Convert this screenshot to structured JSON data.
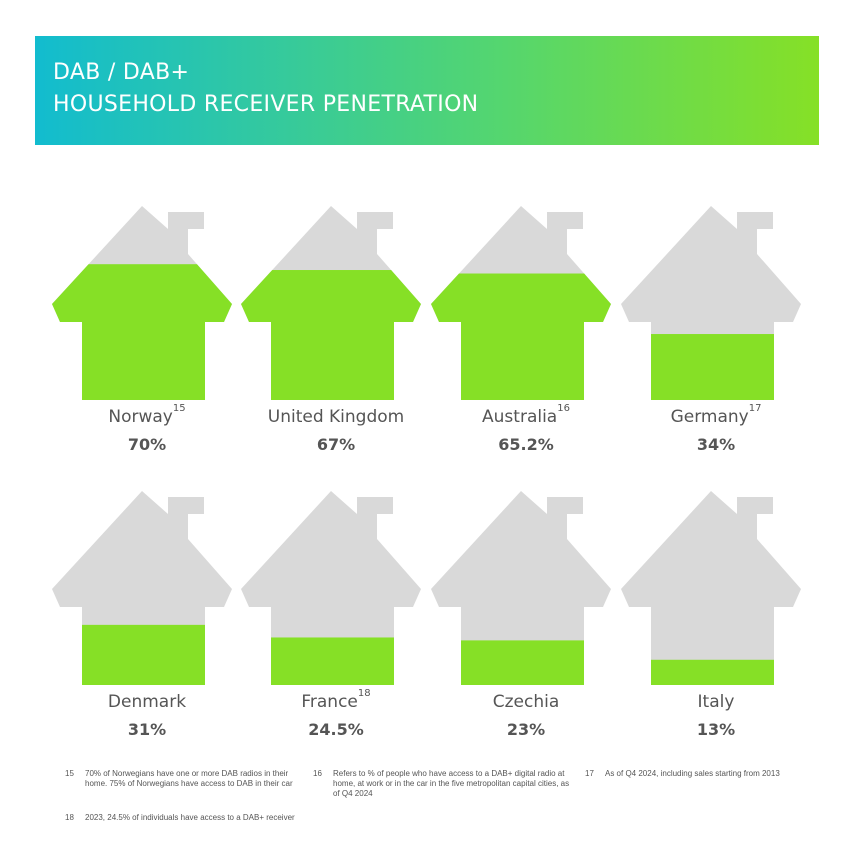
{
  "header": {
    "line1": "DAB /  DAB+",
    "line2": "HOUSEHOLD RECEIVER PENETRATION"
  },
  "colors": {
    "fill": "#86e026",
    "house": "#d9d9d9",
    "text": "#555555"
  },
  "chart_data": {
    "type": "bar",
    "title": "DAB /  DAB+ HOUSEHOLD RECEIVER PENETRATION",
    "unit": "%",
    "ylim": [
      0,
      100
    ],
    "categories": [
      "Norway",
      "United Kingdom",
      "Australia",
      "Germany",
      "Denmark",
      "France",
      "Czechia",
      "Italy"
    ],
    "values": [
      70,
      67,
      65.2,
      34,
      31,
      24.5,
      23,
      13
    ],
    "value_labels": [
      "70%",
      "67%",
      "65.2%",
      "34%",
      "31%",
      "24.5%",
      "23%",
      "13%"
    ],
    "footnote_refs": [
      "15",
      "",
      "16",
      "17",
      "",
      "18",
      "",
      ""
    ]
  },
  "footnotes": [
    {
      "num": "15",
      "text": "70% of Norwegians have one or more DAB radios in their home. 75% of Norwegians have access to DAB in their car"
    },
    {
      "num": "16",
      "text": "Refers to % of people who have access to a DAB+ digital radio at home, at work or in the car in the five metropolitan capital cities, as of Q4 2024"
    },
    {
      "num": "17",
      "text": "As of Q4 2024,  including sales starting from 2013"
    },
    {
      "num": "18",
      "text": "2023, 24.5% of individuals have access to a DAB+ receiver"
    }
  ]
}
